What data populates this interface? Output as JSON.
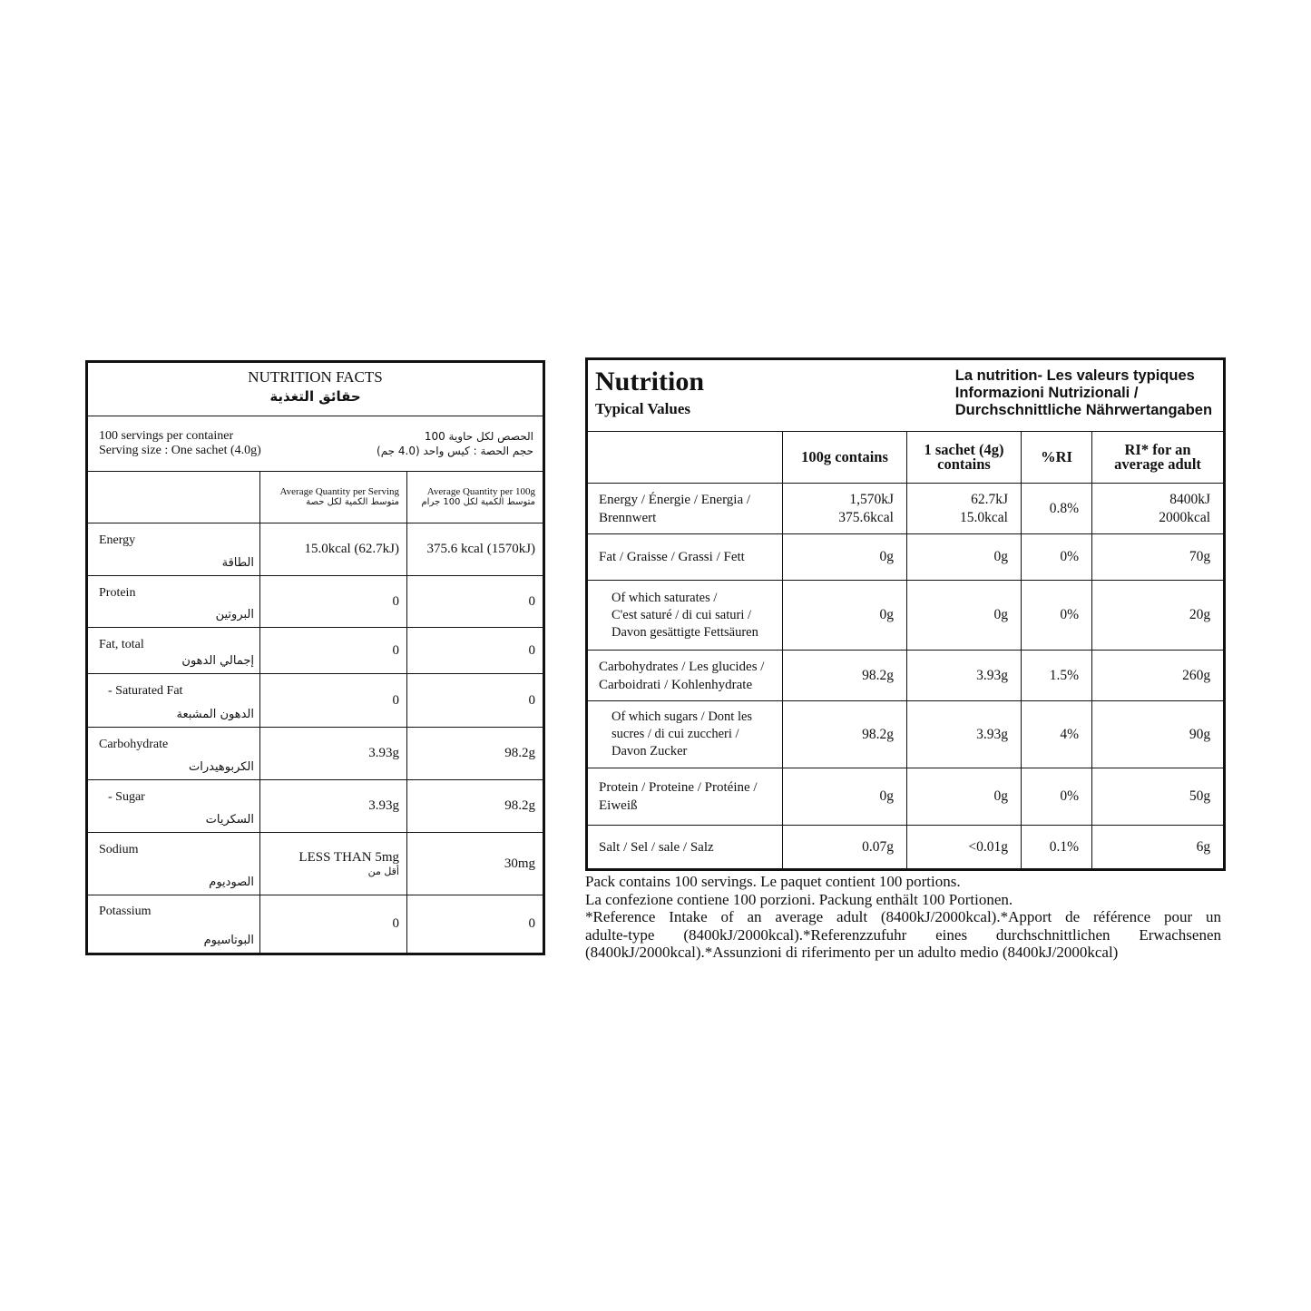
{
  "left": {
    "title": "NUTRITION FACTS",
    "title_ar": "حقائق التغذية",
    "servings": [
      "100 servings per container",
      "Serving size : One sachet (4.0g)"
    ],
    "servings_ar": [
      "الحصص لكل حاوية 100",
      "حجم الحصة : كيس واحد (4.0 جم)"
    ],
    "headers": [
      {
        "en": "Average Quantity per Serving",
        "ar": "متوسط الكمية لكل حصة"
      },
      {
        "en": "Average Quantity per 100g",
        "ar": "متوسط الكمية لكل 100 جرام"
      }
    ],
    "rows": [
      {
        "name": "Energy",
        "name_ar": "الطاقة",
        "per_serving": "15.0kcal (62.7kJ)",
        "per_100g": "375.6 kcal (1570kJ)"
      },
      {
        "name": "Protein",
        "name_ar": "البروتين",
        "per_serving": "0",
        "per_100g": "0"
      },
      {
        "name": "Fat, total",
        "name_ar": "إجمالي الدهون",
        "per_serving": "0",
        "per_100g": "0"
      },
      {
        "name": "- Saturated Fat",
        "name_ar": "الدهون المشبعة",
        "per_serving": "0",
        "per_100g": "0"
      },
      {
        "name": "Carbohydrate",
        "name_ar": "الكربوهيدرات",
        "per_serving": "3.93g",
        "per_100g": "98.2g"
      },
      {
        "name": "- Sugar",
        "name_ar": "السكريات",
        "per_serving": "3.93g",
        "per_100g": "98.2g"
      },
      {
        "name": "Sodium",
        "name_ar": "الصوديوم",
        "per_serving": "LESS THAN 5mg",
        "per_serving_ar": "أقل من",
        "per_100g": "30mg"
      },
      {
        "name": "Potassium",
        "name_ar": "البوتاسيوم",
        "per_serving": "0",
        "per_100g": "0"
      }
    ]
  },
  "right": {
    "title": "Nutrition",
    "subtitle": "Typical  Values",
    "title_right": [
      "La nutrition- Les valeurs typiques",
      "Informazioni Nutrizionali /",
      "Durchschnittliche Nährwertangaben"
    ],
    "headers": [
      "100g contains",
      [
        "1 sachet (4g)",
        "contains"
      ],
      "%RI",
      [
        "RI* for an",
        "average adult"
      ]
    ],
    "rows": [
      {
        "name": [
          "Energy / Énergie / Energia /",
          "Brennwert"
        ],
        "values": [
          [
            "1,570kJ",
            "375.6kcal"
          ],
          [
            "62.7kJ",
            "15.0kcal"
          ],
          "0.8%",
          [
            "8400kJ",
            "2000kcal"
          ]
        ]
      },
      {
        "name": [
          "Fat / Graisse / Grassi / Fett"
        ],
        "values": [
          "0g",
          "0g",
          "0%",
          "70g"
        ]
      },
      {
        "name": [
          "Of which saturates /",
          "C'est saturé / di cui saturi /",
          "Davon gesättigte Fettsäuren"
        ],
        "values": [
          "0g",
          "0g",
          "0%",
          "20g"
        ]
      },
      {
        "name": [
          "Carbohydrates / Les glucides /",
          "Carboidrati / Kohlenhydrate"
        ],
        "values": [
          "98.2g",
          "3.93g",
          "1.5%",
          "260g"
        ]
      },
      {
        "name": [
          "Of which sugars / Dont les",
          "sucres / di cui zuccheri /",
          "Davon Zucker"
        ],
        "values": [
          "98.2g",
          "3.93g",
          "4%",
          "90g"
        ]
      },
      {
        "name": [
          "Protein / Proteine / Protéine /",
          "Eiweiß"
        ],
        "values": [
          "0g",
          "0g",
          "0%",
          "50g"
        ]
      },
      {
        "name": [
          "Salt / Sel /  sale / Salz"
        ],
        "values": [
          "0.07g",
          "<0.01g",
          "0.1%",
          "6g"
        ]
      }
    ],
    "footnote": [
      "Pack contains 100 servings. Le paquet contient 100 portions.",
      "La confezione contiene 100 porzioni. Packung enthält 100 Portionen.",
      "*Reference Intake of an average adult (8400kJ/2000kcal).*Apport de référence pour un",
      "adulte-type (8400kJ/2000kcal).*Referenzzufuhr eines durchschnittlichen Erwachsenen",
      "(8400kJ/2000kcal).*Assunzioni di riferimento per un adulto medio (8400kJ/2000kcal)"
    ]
  }
}
